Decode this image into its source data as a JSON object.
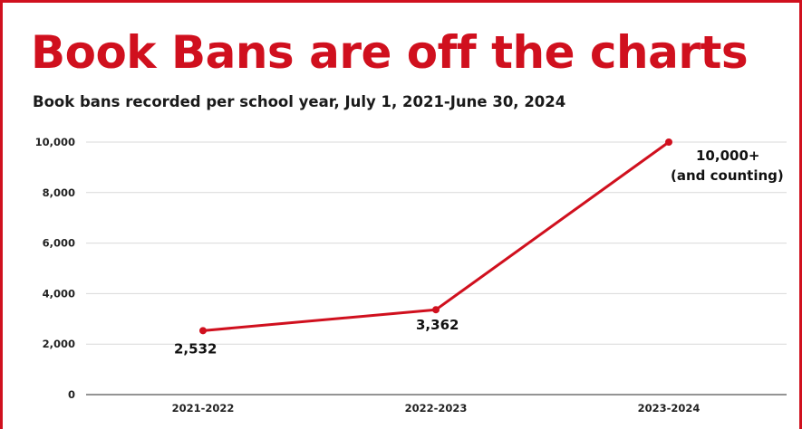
{
  "header": {
    "title": "Book Bans are off the charts",
    "subtitle": "Book bans recorded per school year, July 1, 2021-June 30, 2024"
  },
  "colors": {
    "accent": "#d0101e",
    "grid": "#d9d9d9",
    "text": "#111111"
  },
  "chart_data": {
    "type": "line",
    "title": "Book Bans are off the charts",
    "subtitle": "Book bans recorded per school year, July 1, 2021-June 30, 2024",
    "xlabel": "",
    "ylabel": "",
    "categories": [
      "2021-2022",
      "2022-2023",
      "2023-2024"
    ],
    "series": [
      {
        "values": [
          2532,
          3362,
          10000
        ],
        "color": "#d0101e"
      }
    ],
    "data_labels": [
      [
        "2,532"
      ],
      [
        "3,362"
      ],
      [
        "10,000+",
        "(and counting)"
      ]
    ],
    "ylim": [
      0,
      10000
    ],
    "yticks": [
      0,
      2000,
      4000,
      6000,
      8000,
      10000
    ],
    "ytick_labels": [
      "0",
      "2,000",
      "4,000",
      "6,000",
      "8,000",
      "10,000"
    ],
    "grid": true,
    "legend": "none"
  }
}
